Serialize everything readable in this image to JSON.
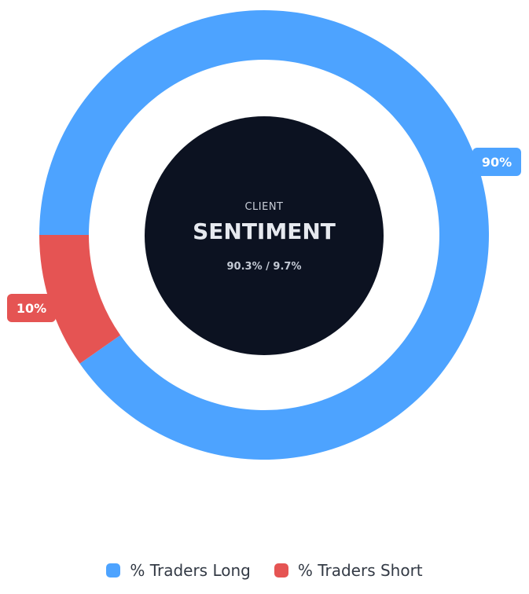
{
  "chart_data": {
    "type": "pie",
    "categories": [
      "% Traders Long",
      "% Traders Short"
    ],
    "values": [
      90.3,
      9.7
    ],
    "data_labels": [
      "90%",
      "10%"
    ],
    "colors": [
      "#4da3ff",
      "#e55453"
    ],
    "center": {
      "small_label": "CLIENT",
      "title": "SENTIMENT",
      "ratio_text": "90.3% / 9.7%"
    },
    "legend_position": "bottom-center"
  }
}
